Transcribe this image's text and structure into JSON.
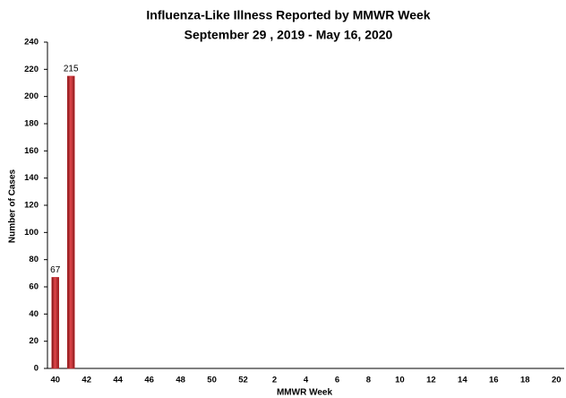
{
  "chart_data": {
    "type": "bar",
    "title": "Influenza-Like Illness Reported by MMWR Week",
    "subtitle": "September 29 , 2019 - May 16, 2020",
    "x_label": "MMWR Week",
    "y_label": "Number of Cases",
    "categories": [
      "40",
      null,
      "42",
      null,
      "44",
      null,
      "46",
      null,
      "48",
      null,
      "50",
      null,
      "52",
      null,
      "2",
      null,
      "4",
      null,
      "6",
      null,
      "8",
      null,
      "10",
      null,
      "12",
      null,
      "14",
      null,
      "16",
      null,
      "18",
      null,
      "20"
    ],
    "values": [
      67,
      215,
      null,
      null,
      null,
      null,
      null,
      null,
      null,
      null,
      null,
      null,
      null,
      null,
      null,
      null,
      null,
      null,
      null,
      null,
      null,
      null,
      null,
      null,
      null,
      null,
      null,
      null,
      null,
      null,
      null,
      null,
      null
    ],
    "color": "#c0282d",
    "ylim": [
      0,
      240
    ],
    "yticks": [
      0,
      20,
      40,
      60,
      80,
      100,
      120,
      140,
      160,
      180,
      200,
      220,
      240
    ],
    "grid": false
  }
}
